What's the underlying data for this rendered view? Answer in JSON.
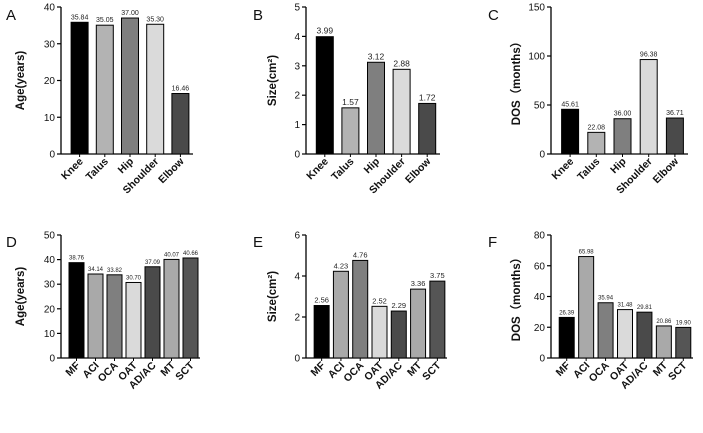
{
  "chart_data": [
    {
      "type": "bar",
      "panel": "A",
      "ylabel": "Age(years)",
      "categories": [
        "Knee",
        "Talus",
        "Hip",
        "Shoulder",
        "Elbow"
      ],
      "values": [
        35.84,
        35.05,
        37.0,
        35.3,
        16.46
      ],
      "value_labels": [
        "35.84",
        "35.05",
        "37.00",
        "35.30",
        "16.46"
      ],
      "ylim": [
        0,
        40
      ],
      "yticks": [
        "0",
        "10",
        "20",
        "30",
        "40"
      ],
      "colors": [
        "#000000",
        "#b3b3b3",
        "#7f7f7f",
        "#dadada",
        "#4a4a4a"
      ]
    },
    {
      "type": "bar",
      "panel": "B",
      "ylabel": "Size(cm²)",
      "categories": [
        "Knee",
        "Talus",
        "Hip",
        "Shoulder",
        "Elbow"
      ],
      "values": [
        3.99,
        1.57,
        3.12,
        2.88,
        1.72
      ],
      "value_labels": [
        "3.99",
        "1.57",
        "3.12",
        "2.88",
        "1.72"
      ],
      "ylim": [
        0,
        5
      ],
      "yticks": [
        "0",
        "1",
        "2",
        "3",
        "4",
        "5"
      ],
      "colors": [
        "#000000",
        "#b3b3b3",
        "#7f7f7f",
        "#dadada",
        "#4a4a4a"
      ]
    },
    {
      "type": "bar",
      "panel": "C",
      "ylabel": "DOS（months）",
      "categories": [
        "Knee",
        "Talus",
        "Hip",
        "Shoulder",
        "Elbow"
      ],
      "values": [
        45.61,
        22.08,
        36.0,
        96.38,
        36.71
      ],
      "value_labels": [
        "45.61",
        "22.08",
        "36.00",
        "96.38",
        "36.71"
      ],
      "ylim": [
        0,
        150
      ],
      "yticks": [
        "0",
        "50",
        "100",
        "150"
      ],
      "colors": [
        "#000000",
        "#b3b3b3",
        "#7f7f7f",
        "#dadada",
        "#4a4a4a"
      ]
    },
    {
      "type": "bar",
      "panel": "D",
      "ylabel": "Age(years)",
      "categories": [
        "MF",
        "ACI",
        "OCA",
        "OAT",
        "AD/AC",
        "MT",
        "SCT"
      ],
      "values": [
        38.76,
        34.14,
        33.82,
        30.7,
        37.09,
        40.07,
        40.66
      ],
      "value_labels": [
        "38.76",
        "34.14",
        "33.82",
        "30.70",
        "37.09",
        "40.07",
        "40.66"
      ],
      "ylim": [
        0,
        50
      ],
      "yticks": [
        "0",
        "10",
        "20",
        "30",
        "40",
        "50"
      ],
      "colors": [
        "#000000",
        "#a9a9a9",
        "#7f7f7f",
        "#dadada",
        "#4a4a4a",
        "#a9a9a9",
        "#555555"
      ]
    },
    {
      "type": "bar",
      "panel": "E",
      "ylabel": "Size(cm²)",
      "categories": [
        "MF",
        "ACI",
        "OCA",
        "OAT",
        "AD/AC",
        "MT",
        "SCT"
      ],
      "values": [
        2.56,
        4.23,
        4.76,
        2.52,
        2.29,
        3.36,
        3.75
      ],
      "value_labels": [
        "2.56",
        "4.23",
        "4.76",
        "2.52",
        "2.29",
        "3.36",
        "3.75"
      ],
      "ylim": [
        0,
        6
      ],
      "yticks": [
        "0",
        "2",
        "4",
        "6"
      ],
      "colors": [
        "#000000",
        "#a9a9a9",
        "#7f7f7f",
        "#dadada",
        "#4a4a4a",
        "#a9a9a9",
        "#555555"
      ]
    },
    {
      "type": "bar",
      "panel": "F",
      "ylabel": "DOS（months）",
      "categories": [
        "MF",
        "ACI",
        "OCA",
        "OAT",
        "AD/AC",
        "MT",
        "SCT"
      ],
      "values": [
        26.39,
        65.98,
        35.94,
        31.48,
        29.81,
        20.86,
        19.9
      ],
      "value_labels": [
        "26.39",
        "65.98",
        "35.94",
        "31.48",
        "29.81",
        "20.86",
        "19.90"
      ],
      "ylim": [
        0,
        80
      ],
      "yticks": [
        "0",
        "20",
        "40",
        "60",
        "80"
      ],
      "colors": [
        "#000000",
        "#a9a9a9",
        "#7f7f7f",
        "#dadada",
        "#4a4a4a",
        "#a9a9a9",
        "#555555"
      ]
    }
  ]
}
